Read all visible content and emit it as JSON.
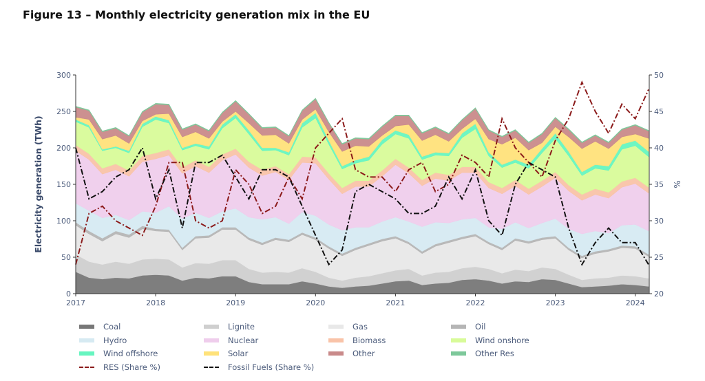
{
  "title": "Figure 13 – Monthly electricity generation mix in the EU",
  "chart_data": {
    "type": "area",
    "stacked": true,
    "title": "",
    "ylabel": "Electricity generation (TWh)",
    "y2label": "%",
    "ylim": [
      0,
      300
    ],
    "y2lim": [
      20,
      50
    ],
    "yticks": [
      0,
      50,
      100,
      150,
      200,
      250,
      300
    ],
    "y2ticks": [
      20,
      25,
      30,
      35,
      40,
      45,
      50
    ],
    "xticks": [
      "2017",
      "2018",
      "2019",
      "2020",
      "2021",
      "2022",
      "2023",
      "2024"
    ],
    "grid": false,
    "legend_position": "bottom",
    "x": [
      "2017-01",
      "2017-03",
      "2017-05",
      "2017-07",
      "2017-09",
      "2017-11",
      "2018-01",
      "2018-03",
      "2018-05",
      "2018-07",
      "2018-09",
      "2018-11",
      "2019-01",
      "2019-03",
      "2019-05",
      "2019-07",
      "2019-09",
      "2019-11",
      "2020-01",
      "2020-03",
      "2020-05",
      "2020-07",
      "2020-09",
      "2020-11",
      "2021-01",
      "2021-03",
      "2021-05",
      "2021-07",
      "2021-09",
      "2021-11",
      "2022-01",
      "2022-03",
      "2022-05",
      "2022-07",
      "2022-09",
      "2022-11",
      "2023-01",
      "2023-03",
      "2023-05",
      "2023-07",
      "2023-09",
      "2023-11",
      "2024-01",
      "2024-03"
    ],
    "series": [
      {
        "name": "Coal",
        "color": "#777777",
        "values": [
          30,
          22,
          20,
          22,
          21,
          25,
          26,
          25,
          18,
          22,
          21,
          24,
          24,
          16,
          13,
          13,
          13,
          17,
          14,
          10,
          8,
          10,
          11,
          14,
          17,
          18,
          12,
          14,
          15,
          19,
          20,
          18,
          14,
          17,
          16,
          20,
          19,
          14,
          9,
          10,
          11,
          13,
          12,
          10
        ]
      },
      {
        "name": "Lignite",
        "color": "#cfcfcf",
        "values": [
          24,
          22,
          20,
          22,
          20,
          22,
          22,
          22,
          18,
          20,
          20,
          22,
          22,
          18,
          16,
          17,
          16,
          18,
          16,
          12,
          10,
          12,
          13,
          14,
          15,
          16,
          13,
          15,
          15,
          16,
          17,
          16,
          14,
          16,
          15,
          16,
          15,
          12,
          10,
          11,
          11,
          12,
          12,
          11
        ]
      },
      {
        "name": "Gas",
        "color": "#e8e8e8",
        "values": [
          40,
          38,
          32,
          38,
          36,
          42,
          38,
          38,
          24,
          34,
          36,
          42,
          42,
          40,
          38,
          44,
          42,
          46,
          44,
          40,
          34,
          38,
          42,
          44,
          44,
          34,
          30,
          36,
          40,
          40,
          42,
          34,
          32,
          40,
          38,
          38,
          42,
          34,
          30,
          34,
          36,
          38,
          38,
          30
        ]
      },
      {
        "name": "Oil",
        "color": "#b5b5b5",
        "values": [
          4,
          4,
          4,
          4,
          4,
          4,
          3,
          3,
          3,
          3,
          3,
          3,
          3,
          3,
          3,
          3,
          3,
          3,
          3,
          3,
          3,
          3,
          3,
          3,
          3,
          3,
          3,
          3,
          3,
          3,
          3,
          3,
          3,
          3,
          3,
          3,
          3,
          3,
          3,
          3,
          3,
          3,
          3,
          3
        ]
      },
      {
        "name": "Hydro",
        "color": "#d6eaf2",
        "values": [
          26,
          28,
          28,
          22,
          20,
          20,
          22,
          32,
          40,
          32,
          24,
          22,
          26,
          28,
          32,
          28,
          22,
          28,
          30,
          30,
          32,
          28,
          22,
          24,
          26,
          28,
          34,
          30,
          24,
          24,
          22,
          20,
          26,
          22,
          18,
          20,
          24,
          26,
          30,
          28,
          22,
          28,
          30,
          32
        ]
      },
      {
        "name": "Nuclear",
        "color": "#efcdec",
        "values": [
          72,
          70,
          60,
          62,
          60,
          68,
          74,
          70,
          62,
          64,
          62,
          70,
          74,
          68,
          60,
          62,
          60,
          68,
          72,
          62,
          50,
          56,
          56,
          62,
          72,
          66,
          56,
          60,
          58,
          64,
          62,
          54,
          48,
          50,
          46,
          50,
          56,
          52,
          46,
          50,
          48,
          52,
          56,
          52
        ]
      },
      {
        "name": "Biomass",
        "color": "#f9c3a8",
        "values": [
          8,
          8,
          8,
          8,
          8,
          8,
          8,
          8,
          8,
          8,
          8,
          8,
          8,
          8,
          8,
          8,
          8,
          8,
          8,
          8,
          8,
          8,
          8,
          8,
          8,
          8,
          8,
          8,
          8,
          8,
          8,
          8,
          8,
          8,
          8,
          8,
          8,
          8,
          8,
          8,
          8,
          8,
          8,
          8
        ]
      },
      {
        "name": "Wind onshore",
        "color": "#d8fb99",
        "values": [
          32,
          36,
          24,
          22,
          24,
          40,
          46,
          36,
          24,
          20,
          24,
          36,
          42,
          38,
          26,
          22,
          26,
          40,
          54,
          40,
          26,
          24,
          28,
          36,
          34,
          40,
          28,
          24,
          26,
          40,
          52,
          36,
          28,
          24,
          28,
          38,
          46,
          40,
          26,
          28,
          30,
          44,
          44,
          42
        ]
      },
      {
        "name": "Wind offshore",
        "color": "#66f5c0",
        "values": [
          3,
          3,
          2,
          2,
          3,
          4,
          4,
          4,
          3,
          3,
          4,
          5,
          5,
          5,
          4,
          3,
          4,
          6,
          7,
          5,
          4,
          4,
          5,
          6,
          5,
          5,
          4,
          4,
          4,
          6,
          7,
          5,
          4,
          4,
          5,
          6,
          7,
          6,
          5,
          5,
          6,
          7,
          7,
          7
        ]
      },
      {
        "name": "Solar",
        "color": "#ffe27a",
        "values": [
          3,
          8,
          14,
          15,
          10,
          4,
          3,
          9,
          15,
          16,
          11,
          4,
          4,
          10,
          17,
          18,
          12,
          5,
          5,
          12,
          20,
          20,
          14,
          6,
          6,
          14,
          22,
          24,
          16,
          6,
          7,
          18,
          28,
          30,
          20,
          8,
          9,
          20,
          32,
          32,
          24,
          10,
          9,
          18
        ]
      },
      {
        "name": "Other",
        "color": "#c98a8a",
        "values": [
          14,
          12,
          10,
          10,
          10,
          12,
          14,
          12,
          10,
          10,
          10,
          12,
          14,
          12,
          10,
          10,
          10,
          12,
          14,
          12,
          10,
          10,
          10,
          12,
          14,
          12,
          10,
          10,
          10,
          12,
          14,
          12,
          10,
          10,
          10,
          12,
          12,
          10,
          8,
          8,
          8,
          10,
          12,
          10
        ]
      },
      {
        "name": "Other Res",
        "color": "#7dc89a",
        "values": [
          1,
          1,
          1,
          1,
          1,
          1,
          1,
          1,
          1,
          1,
          1,
          1,
          1,
          1,
          1,
          1,
          1,
          1,
          1,
          1,
          1,
          1,
          1,
          1,
          1,
          1,
          1,
          1,
          1,
          1,
          1,
          1,
          1,
          1,
          1,
          1,
          1,
          1,
          1,
          1,
          1,
          1,
          1,
          1
        ]
      }
    ],
    "lines": [
      {
        "name": "RES (Share %)",
        "color": "#8b1a1a",
        "axis": "right",
        "values": [
          24,
          31,
          32,
          30,
          29,
          28,
          32,
          38,
          38,
          30,
          29,
          30,
          37,
          35,
          31,
          32,
          36,
          33,
          40,
          42,
          44,
          37,
          36,
          36,
          34,
          37,
          38,
          34,
          35,
          39,
          38,
          36,
          44,
          40,
          38,
          36,
          41,
          44,
          49,
          45,
          42,
          46,
          44,
          48
        ]
      },
      {
        "name": "Fossil Fuels (Share %)",
        "color": "#111111",
        "axis": "right",
        "values": [
          40,
          33,
          34,
          36,
          37,
          40,
          33,
          37,
          29,
          38,
          38,
          39,
          36,
          33,
          37,
          37,
          36,
          32,
          28,
          24,
          26,
          34,
          35,
          34,
          33,
          31,
          31,
          32,
          36,
          33,
          37,
          30,
          28,
          35,
          38,
          37,
          36,
          29,
          24,
          27,
          29,
          27,
          27,
          24
        ]
      }
    ]
  }
}
